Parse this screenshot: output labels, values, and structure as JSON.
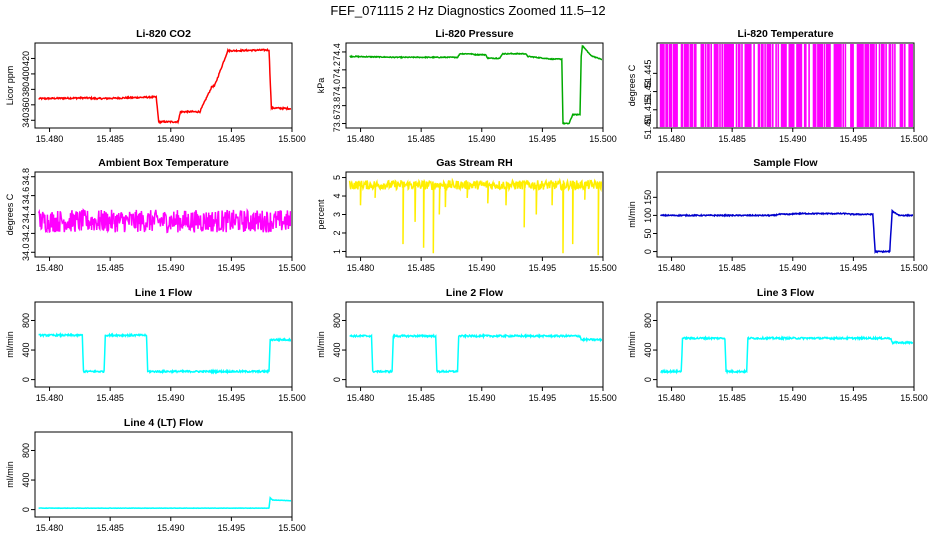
{
  "title": "FEF_071115  2 Hz Diagnostics Zoomed 11.5–12",
  "chart_data": [
    {
      "type": "line",
      "title": "Li-820 CO2",
      "ylabel": "Licor ppm",
      "color": "#ff0000",
      "xlim": [
        15.4788,
        15.5
      ],
      "ylim": [
        330,
        440
      ],
      "xticks": [
        "15.480",
        "15.485",
        "15.490",
        "15.495",
        "15.500"
      ],
      "yticks": [
        "340",
        "360",
        "380",
        "400",
        "420"
      ],
      "series": [
        {
          "x": [
            15.4791,
            15.483,
            15.484,
            15.4885,
            15.4888,
            15.489,
            15.4906,
            15.4908,
            15.4922,
            15.4924,
            15.4934,
            15.4936,
            15.4947,
            15.4949,
            15.4981,
            15.4983,
            15.5
          ],
          "y": [
            368,
            369,
            368,
            370,
            370,
            338,
            338,
            351,
            351,
            351,
            384,
            384,
            430,
            430,
            431,
            356,
            355
          ],
          "noise": 1
        }
      ]
    },
    {
      "type": "line",
      "title": "Li-820 Pressure",
      "ylabel": "kPa",
      "color": "#00aa00",
      "xlim": [
        15.4788,
        15.5
      ],
      "ylim": [
        73.55,
        74.5
      ],
      "xticks": [
        "15.480",
        "15.485",
        "15.490",
        "15.495",
        "15.500"
      ],
      "yticks": [
        "73.6",
        "73.8",
        "74.0",
        "74.2",
        "74.4"
      ],
      "series": [
        {
          "x": [
            15.4791,
            15.483,
            15.4875,
            15.488,
            15.4882,
            15.489,
            15.4895,
            15.4903,
            15.4905,
            15.491,
            15.4915,
            15.4917,
            15.4936,
            15.4938,
            15.4958,
            15.4966,
            15.4967,
            15.4972,
            15.4975,
            15.4981,
            15.4982,
            15.4983,
            15.499,
            15.5
          ],
          "y": [
            74.35,
            74.34,
            74.34,
            74.34,
            74.38,
            74.38,
            74.37,
            74.37,
            74.33,
            74.33,
            74.33,
            74.38,
            74.38,
            74.35,
            74.32,
            74.32,
            73.6,
            73.6,
            73.7,
            73.7,
            74.35,
            74.47,
            74.36,
            74.31
          ],
          "noise": 0.005
        }
      ]
    },
    {
      "type": "bar",
      "title": "Li-820 Temperature",
      "ylabel": "degrees C",
      "color": "#ff00ff",
      "xlim": [
        15.4788,
        15.5
      ],
      "ylim": [
        51.4,
        51.47
      ],
      "xticks": [
        "15.480",
        "15.485",
        "15.490",
        "15.495",
        "15.500"
      ],
      "yticks": [
        "51.40",
        "51.415",
        "51.43",
        "51.445"
      ],
      "low": 51.4,
      "high": 51.47
    },
    {
      "type": "line",
      "title": "Ambient Box Temperature",
      "ylabel": "degrees C",
      "color": "#ff00ff",
      "xlim": [
        15.4788,
        15.5
      ],
      "ylim": [
        33.95,
        34.85
      ],
      "xticks": [
        "15.480",
        "15.485",
        "15.490",
        "15.495",
        "15.500"
      ],
      "yticks": [
        "34.0",
        "34.2",
        "34.4",
        "34.6",
        "34.8"
      ],
      "series": [
        {
          "x": [
            15.4791,
            15.5
          ],
          "y": [
            34.33,
            34.33
          ],
          "noise": 0.12
        }
      ]
    },
    {
      "type": "line",
      "title": "Gas Stream RH",
      "ylabel": "percent",
      "color": "#ffee00",
      "xlim": [
        15.4788,
        15.5
      ],
      "ylim": [
        0.7,
        5.3
      ],
      "xticks": [
        "15.480",
        "15.485",
        "15.490",
        "15.495",
        "15.500"
      ],
      "yticks": [
        "1",
        "2",
        "3",
        "4",
        "5"
      ],
      "series": [
        {
          "x": [
            15.4791,
            15.5
          ],
          "y": [
            4.6,
            4.6
          ],
          "noise": 0.25
        }
      ],
      "dips": [
        [
          15.48,
          3.5
        ],
        [
          15.4812,
          3.9
        ],
        [
          15.4835,
          1.4
        ],
        [
          15.4845,
          2.6
        ],
        [
          15.4852,
          1.2
        ],
        [
          15.486,
          0.9
        ],
        [
          15.4865,
          3.0
        ],
        [
          15.487,
          3.4
        ],
        [
          15.4888,
          3.9
        ],
        [
          15.4905,
          3.6
        ],
        [
          15.492,
          3.5
        ],
        [
          15.4935,
          2.3
        ],
        [
          15.4945,
          3.0
        ],
        [
          15.4958,
          3.5
        ],
        [
          15.4967,
          0.9
        ],
        [
          15.4975,
          1.4
        ],
        [
          15.4985,
          3.8
        ],
        [
          15.4996,
          0.8
        ]
      ]
    },
    {
      "type": "line",
      "title": "Sample Flow",
      "ylabel": "ml/min",
      "color": "#0000cc",
      "xlim": [
        15.4788,
        15.5
      ],
      "ylim": [
        -15,
        220
      ],
      "xticks": [
        "15.480",
        "15.485",
        "15.490",
        "15.495",
        "15.500"
      ],
      "yticks": [
        "0",
        "50",
        "100",
        "150"
      ],
      "series": [
        {
          "x": [
            15.4791,
            15.4885,
            15.4888,
            15.4899,
            15.4902,
            15.4945,
            15.4947,
            15.4966,
            15.4968,
            15.498,
            15.4982,
            15.4988,
            15.5
          ],
          "y": [
            100,
            100,
            103,
            103,
            105,
            105,
            103,
            103,
            0,
            0,
            112,
            100,
            100
          ],
          "noise": 1.5
        }
      ]
    },
    {
      "type": "line",
      "title": "Line 1 Flow",
      "ylabel": "ml/min",
      "color": "#00ffff",
      "xlim": [
        15.4788,
        15.5
      ],
      "ylim": [
        -100,
        1050
      ],
      "xticks": [
        "15.480",
        "15.485",
        "15.490",
        "15.495",
        "15.500"
      ],
      "yticks": [
        "0",
        "400",
        "800"
      ],
      "series": [
        {
          "x": [
            15.4791,
            15.4827,
            15.4828,
            15.4845,
            15.4846,
            15.488,
            15.4881,
            15.4981,
            15.4982,
            15.5
          ],
          "y": [
            600,
            600,
            110,
            110,
            600,
            600,
            110,
            110,
            540,
            540
          ],
          "noise": 12
        }
      ]
    },
    {
      "type": "line",
      "title": "Line 2 Flow",
      "ylabel": "ml/min",
      "color": "#00ffff",
      "xlim": [
        15.4788,
        15.5
      ],
      "ylim": [
        -100,
        1050
      ],
      "xticks": [
        "15.480",
        "15.485",
        "15.490",
        "15.495",
        "15.500"
      ],
      "yticks": [
        "0",
        "400",
        "800"
      ],
      "series": [
        {
          "x": [
            15.4791,
            15.4809,
            15.481,
            15.4826,
            15.4827,
            15.4862,
            15.4863,
            15.488,
            15.4881,
            15.4981,
            15.4982,
            15.5
          ],
          "y": [
            590,
            590,
            110,
            110,
            590,
            590,
            110,
            110,
            590,
            590,
            540,
            540
          ],
          "noise": 12
        }
      ]
    },
    {
      "type": "line",
      "title": "Line 3 Flow",
      "ylabel": "ml/min",
      "color": "#00ffff",
      "xlim": [
        15.4788,
        15.5
      ],
      "ylim": [
        -100,
        1050
      ],
      "xticks": [
        "15.480",
        "15.485",
        "15.490",
        "15.495",
        "15.500"
      ],
      "yticks": [
        "0",
        "400",
        "800"
      ],
      "series": [
        {
          "x": [
            15.4791,
            15.4808,
            15.4809,
            15.4844,
            15.4845,
            15.4862,
            15.4863,
            15.4981,
            15.4982,
            15.5
          ],
          "y": [
            110,
            110,
            560,
            560,
            110,
            110,
            560,
            560,
            500,
            500
          ],
          "noise": 12
        }
      ]
    },
    {
      "type": "line",
      "title": "Line 4 (LT) Flow",
      "ylabel": "ml/min",
      "color": "#00ffff",
      "xlim": [
        15.4788,
        15.5
      ],
      "ylim": [
        -100,
        1050
      ],
      "xticks": [
        "15.480",
        "15.485",
        "15.490",
        "15.495",
        "15.500"
      ],
      "yticks": [
        "0",
        "400",
        "800"
      ],
      "series": [
        {
          "x": [
            15.4791,
            15.4981,
            15.4982,
            15.4984,
            15.5
          ],
          "y": [
            20,
            20,
            160,
            130,
            120
          ],
          "noise": 2
        }
      ]
    }
  ]
}
